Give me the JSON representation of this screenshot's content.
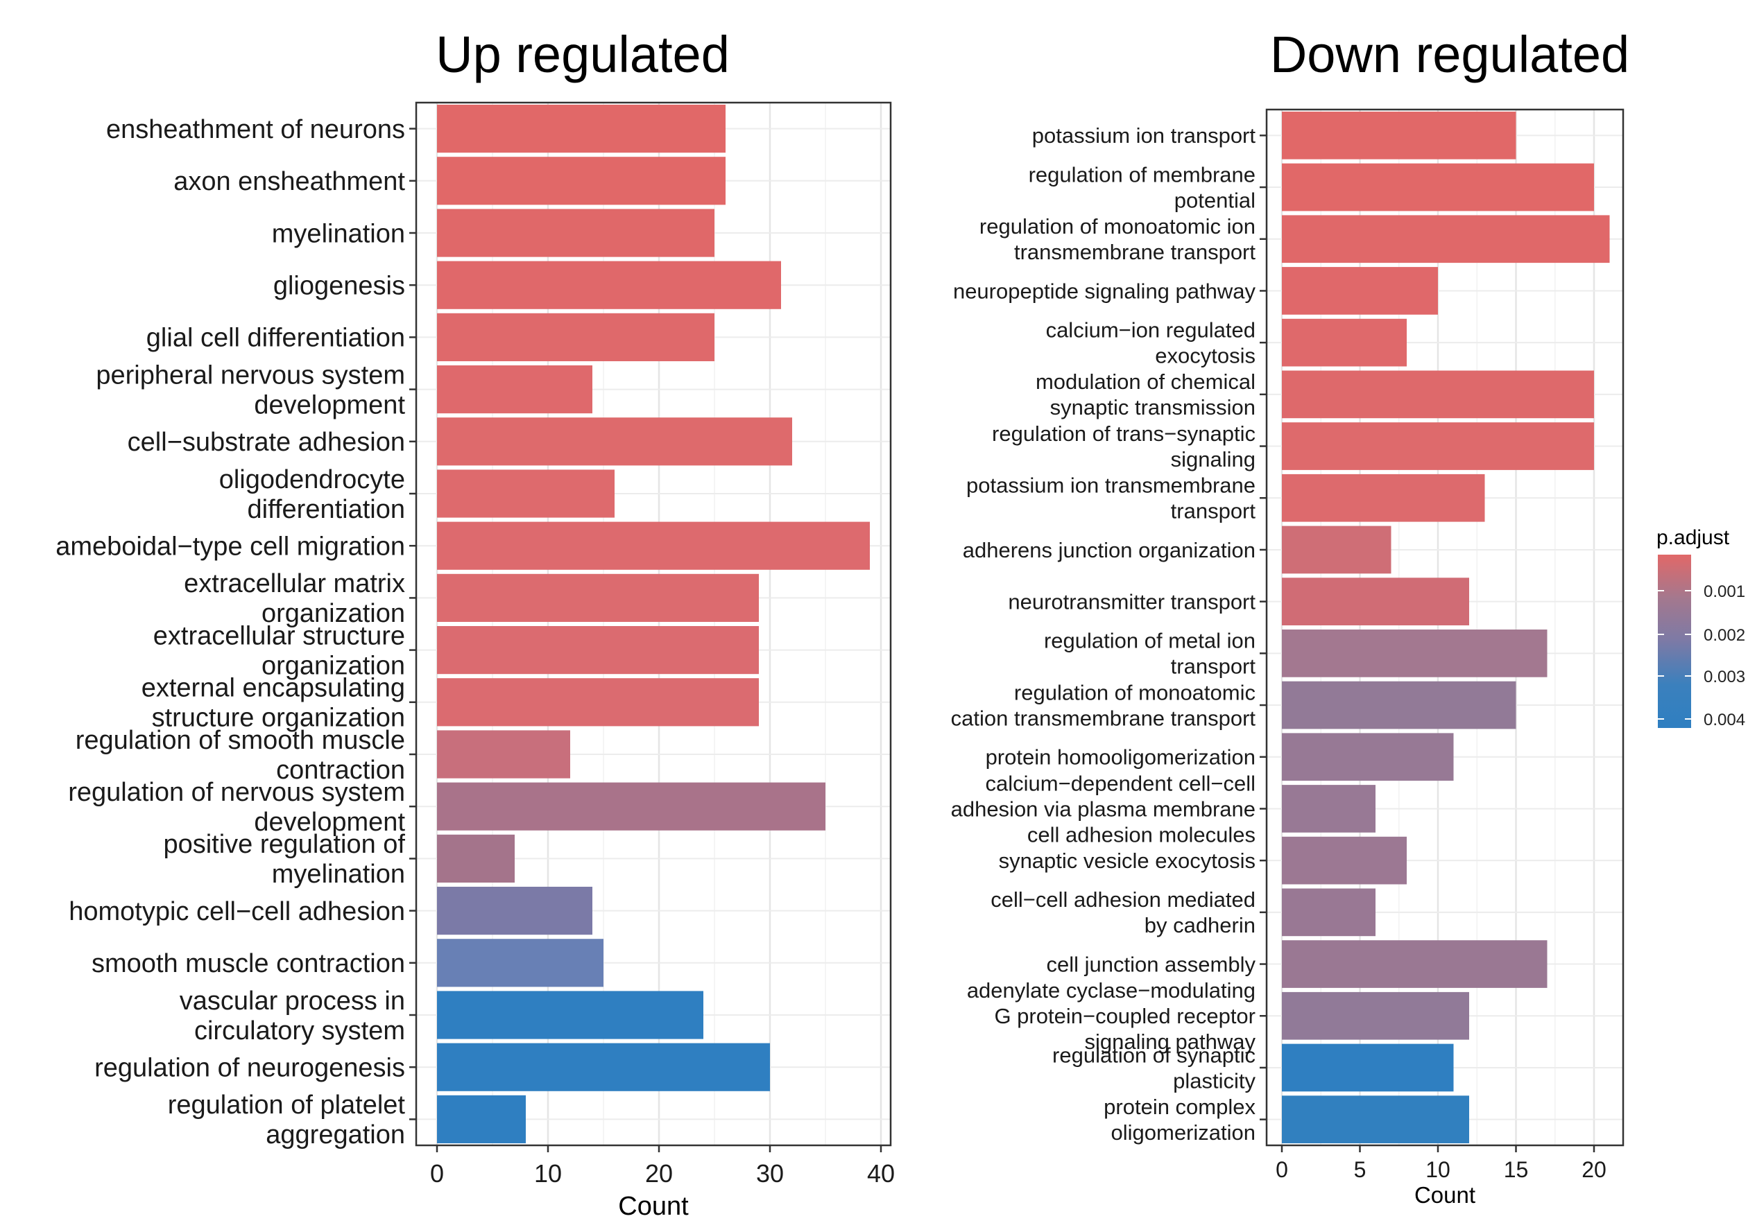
{
  "titles": {
    "up": "Up regulated",
    "down": "Down regulated"
  },
  "legend": {
    "title": "p.adjust",
    "ticks": [
      "0.001",
      "0.002",
      "0.003",
      "0.004"
    ],
    "gradient": [
      "#e16868",
      "#a4788e",
      "#7c7aa6",
      "#3b80bd",
      "#2f7fc1"
    ]
  },
  "chart_data": [
    {
      "type": "bar",
      "orientation": "horizontal",
      "title": "Up regulated",
      "xlabel": "Count",
      "ylabel": "",
      "xlim": [
        0,
        40
      ],
      "xticks": [
        0,
        10,
        20,
        30,
        40
      ],
      "grid": true,
      "categories": [
        "ensheathment of neurons",
        "axon ensheathment",
        "myelination",
        "gliogenesis",
        "glial cell differentiation",
        "peripheral nervous system development",
        "cell−substrate adhesion",
        "oligodendrocyte differentiation",
        "ameboidal−type cell migration",
        "extracellular matrix organization",
        "extracellular structure organization",
        "external encapsulating structure organization",
        "regulation of smooth muscle contraction",
        "regulation of nervous system development",
        "positive regulation of myelination",
        "homotypic cell−cell adhesion",
        "smooth muscle contraction",
        "vascular process in circulatory system",
        "regulation of neurogenesis",
        "regulation of platelet aggregation"
      ],
      "label_lines": [
        [
          "ensheathment of neurons"
        ],
        [
          "axon ensheathment"
        ],
        [
          "myelination"
        ],
        [
          "gliogenesis"
        ],
        [
          "glial cell differentiation"
        ],
        [
          "peripheral nervous system",
          "development"
        ],
        [
          "cell−substrate adhesion"
        ],
        [
          "oligodendrocyte",
          "differentiation"
        ],
        [
          "ameboidal−type cell migration"
        ],
        [
          "extracellular matrix",
          "organization"
        ],
        [
          "extracellular structure",
          "organization"
        ],
        [
          "external encapsulating",
          "structure organization"
        ],
        [
          "regulation of smooth muscle",
          "contraction"
        ],
        [
          "regulation of nervous system",
          "development"
        ],
        [
          "positive regulation of",
          "myelination"
        ],
        [
          "homotypic cell−cell adhesion"
        ],
        [
          "smooth muscle contraction"
        ],
        [
          "vascular process in",
          "circulatory system"
        ],
        [
          "regulation of neurogenesis"
        ],
        [
          "regulation of platelet",
          "aggregation"
        ]
      ],
      "values": [
        26,
        26,
        25,
        31,
        25,
        14,
        32,
        16,
        39,
        29,
        29,
        29,
        12,
        35,
        7,
        14,
        15,
        24,
        30,
        8
      ],
      "colors": [
        "#e16868",
        "#e16868",
        "#e06869",
        "#e0686a",
        "#df696b",
        "#df696c",
        "#de6a6c",
        "#de6a6d",
        "#dd6a6e",
        "#dc6b6f",
        "#db6b70",
        "#db6b70",
        "#c86f7c",
        "#a9738a",
        "#a4748b",
        "#7b7aa7",
        "#6880b5",
        "#2f7fc1",
        "#2f7fc1",
        "#2f7fc1"
      ]
    },
    {
      "type": "bar",
      "orientation": "horizontal",
      "title": "Down regulated",
      "xlabel": "Count",
      "ylabel": "",
      "xlim": [
        0,
        21
      ],
      "xticks": [
        0,
        5,
        10,
        15,
        20
      ],
      "grid": true,
      "categories": [
        "potassium ion transport",
        "regulation of membrane potential",
        "regulation of monoatomic ion transmembrane transport",
        "neuropeptide signaling pathway",
        "calcium−ion regulated exocytosis",
        "modulation of chemical synaptic transmission",
        "regulation of trans−synaptic signaling",
        "potassium ion transmembrane transport",
        "adherens junction organization",
        "neurotransmitter transport",
        "regulation of metal ion transport",
        "regulation of monoatomic cation transmembrane transport",
        "protein homooligomerization",
        "calcium−dependent cell−cell adhesion via plasma membrane cell adhesion molecules",
        "synaptic vesicle exocytosis",
        "cell−cell adhesion mediated by cadherin",
        "cell junction assembly",
        "adenylate cyclase−modulating G protein−coupled receptor signaling pathway",
        "regulation of synaptic plasticity",
        "protein complex oligomerization"
      ],
      "label_lines": [
        [
          "potassium ion transport"
        ],
        [
          "regulation of membrane",
          "potential"
        ],
        [
          "regulation of monoatomic ion",
          "transmembrane transport"
        ],
        [
          "neuropeptide signaling pathway"
        ],
        [
          "calcium−ion regulated",
          "exocytosis"
        ],
        [
          "modulation of chemical",
          "synaptic transmission"
        ],
        [
          "regulation of trans−synaptic",
          "signaling"
        ],
        [
          "potassium ion transmembrane",
          "transport"
        ],
        [
          "adherens junction organization"
        ],
        [
          "neurotransmitter transport"
        ],
        [
          "regulation of metal ion",
          "transport"
        ],
        [
          "regulation of monoatomic",
          "cation transmembrane transport"
        ],
        [
          "protein homooligomerization"
        ],
        [
          "calcium−dependent cell−cell",
          "adhesion via plasma membrane",
          "cell adhesion molecules"
        ],
        [
          "synaptic vesicle exocytosis"
        ],
        [
          "cell−cell adhesion mediated",
          "by cadherin"
        ],
        [
          "cell junction assembly"
        ],
        [
          "adenylate cyclase−modulating",
          "G protein−coupled receptor",
          "signaling pathway"
        ],
        [
          "regulation of synaptic",
          "plasticity"
        ],
        [
          "protein complex",
          "oligomerization"
        ]
      ],
      "values": [
        15,
        20,
        21,
        10,
        8,
        20,
        20,
        13,
        7,
        12,
        17,
        15,
        11,
        6,
        8,
        6,
        17,
        12,
        11,
        12
      ],
      "colors": [
        "#e16868",
        "#e16868",
        "#e06869",
        "#e0686a",
        "#df696b",
        "#de696b",
        "#de6a6c",
        "#dd6a6d",
        "#cf6e76",
        "#d06c75",
        "#a37890",
        "#927a97",
        "#977995",
        "#987995",
        "#9c7893",
        "#997894",
        "#9a7893",
        "#917a98",
        "#2f7fc1",
        "#3180bf"
      ]
    }
  ]
}
